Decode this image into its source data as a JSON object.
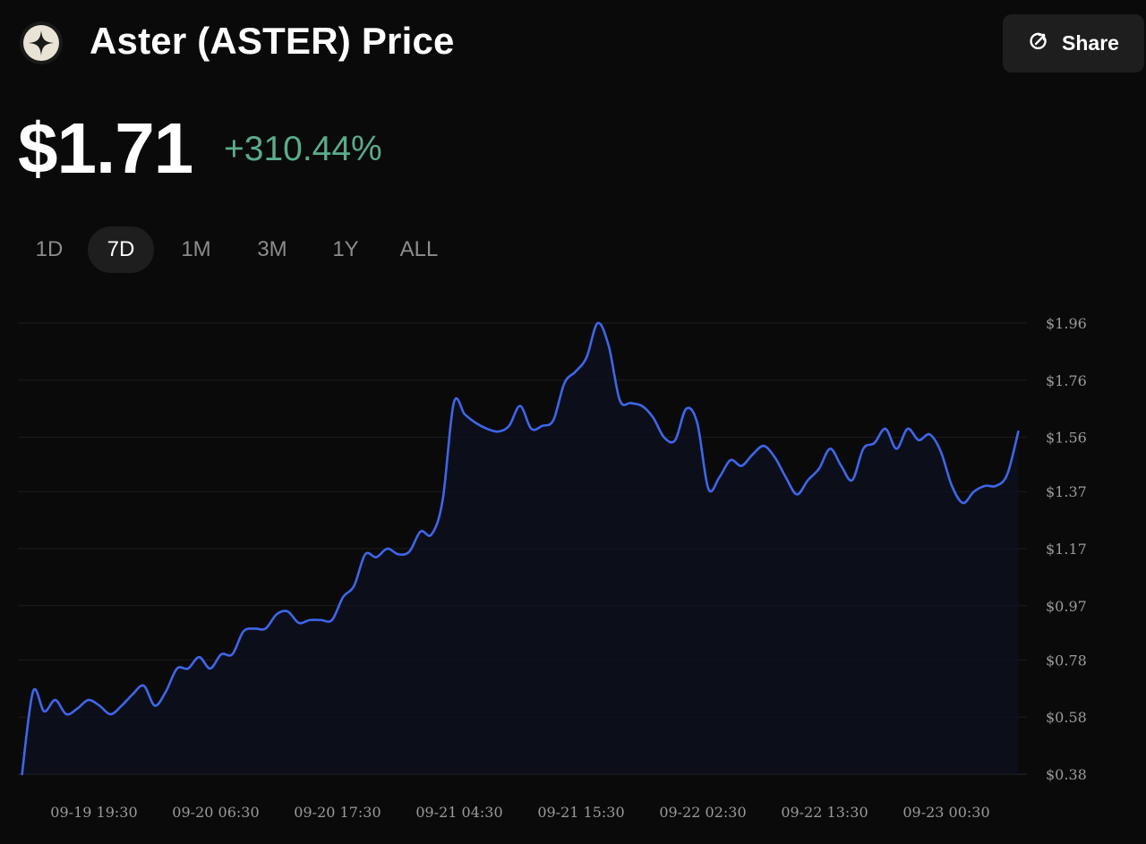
{
  "header": {
    "title": "Aster (ASTER) Price",
    "logo_icon": "aster-logo-icon",
    "share_label": "Share",
    "share_icon": "share-arrow-icon"
  },
  "price": {
    "value": "$1.71",
    "change": "+310.44%",
    "change_color": "#5aac8a"
  },
  "tabs": [
    {
      "label": "1D",
      "active": false
    },
    {
      "label": "7D",
      "active": true
    },
    {
      "label": "1M",
      "active": false
    },
    {
      "label": "3M",
      "active": false
    },
    {
      "label": "1Y",
      "active": false
    },
    {
      "label": "ALL",
      "active": false
    }
  ],
  "chart_data": {
    "type": "line",
    "line_color": "#3e66ea",
    "grid": true,
    "ylim": [
      0.38,
      1.96
    ],
    "y_ticks": [
      "$1.96",
      "$1.76",
      "$1.56",
      "$1.37",
      "$1.17",
      "$0.97",
      "$0.78",
      "$0.58",
      "$0.38"
    ],
    "y_tick_values": [
      1.96,
      1.76,
      1.56,
      1.37,
      1.17,
      0.97,
      0.78,
      0.58,
      0.38
    ],
    "x_ticks": [
      "09-19 19:30",
      "09-20 06:30",
      "09-20 17:30",
      "09-21 04:30",
      "09-21 15:30",
      "09-22 02:30",
      "09-22 13:30",
      "09-23 00:30"
    ],
    "x": [
      "09-19 13:00",
      "09-19 14:00",
      "09-19 15:00",
      "09-19 16:00",
      "09-19 17:00",
      "09-19 18:00",
      "09-19 19:00",
      "09-19 20:00",
      "09-19 21:00",
      "09-19 22:00",
      "09-19 23:00",
      "09-20 00:00",
      "09-20 01:00",
      "09-20 02:00",
      "09-20 03:00",
      "09-20 04:00",
      "09-20 05:00",
      "09-20 06:00",
      "09-20 07:00",
      "09-20 08:00",
      "09-20 09:00",
      "09-20 10:00",
      "09-20 11:00",
      "09-20 12:00",
      "09-20 13:00",
      "09-20 14:00",
      "09-20 15:00",
      "09-20 16:00",
      "09-20 17:00",
      "09-20 18:00",
      "09-20 19:00",
      "09-20 20:00",
      "09-20 21:00",
      "09-20 22:00",
      "09-20 23:00",
      "09-21 00:00",
      "09-21 01:00",
      "09-21 02:00",
      "09-21 03:00",
      "09-21 04:00",
      "09-21 05:00",
      "09-21 06:00",
      "09-21 07:00",
      "09-21 08:00",
      "09-21 09:00",
      "09-21 10:00",
      "09-21 11:00",
      "09-21 12:00",
      "09-21 13:00",
      "09-21 14:00",
      "09-21 15:00",
      "09-21 16:00",
      "09-21 17:00",
      "09-21 18:00",
      "09-21 19:00",
      "09-21 20:00",
      "09-21 21:00",
      "09-21 22:00",
      "09-21 23:00",
      "09-22 00:00",
      "09-22 01:00",
      "09-22 02:00",
      "09-22 03:00",
      "09-22 04:00",
      "09-22 05:00",
      "09-22 06:00",
      "09-22 07:00",
      "09-22 08:00",
      "09-22 09:00",
      "09-22 10:00",
      "09-22 11:00",
      "09-22 12:00",
      "09-22 13:00",
      "09-22 14:00",
      "09-22 15:00",
      "09-22 16:00",
      "09-22 17:00",
      "09-22 18:00",
      "09-22 19:00",
      "09-22 20:00",
      "09-22 21:00",
      "09-22 22:00",
      "09-22 23:00",
      "09-23 00:00",
      "09-23 01:00",
      "09-23 02:00",
      "09-23 03:00",
      "09-23 04:00",
      "09-23 05:00",
      "09-23 06:00",
      "09-23 07:00"
    ],
    "y": [
      0.38,
      0.67,
      0.6,
      0.64,
      0.59,
      0.61,
      0.64,
      0.62,
      0.59,
      0.62,
      0.66,
      0.69,
      0.62,
      0.67,
      0.75,
      0.75,
      0.79,
      0.75,
      0.8,
      0.8,
      0.88,
      0.89,
      0.89,
      0.94,
      0.95,
      0.91,
      0.92,
      0.92,
      0.92,
      1.0,
      1.04,
      1.15,
      1.14,
      1.17,
      1.15,
      1.16,
      1.23,
      1.22,
      1.34,
      1.68,
      1.64,
      1.61,
      1.59,
      1.58,
      1.6,
      1.67,
      1.59,
      1.6,
      1.62,
      1.75,
      1.79,
      1.84,
      1.96,
      1.88,
      1.69,
      1.68,
      1.67,
      1.63,
      1.56,
      1.55,
      1.66,
      1.61,
      1.38,
      1.42,
      1.48,
      1.46,
      1.5,
      1.53,
      1.49,
      1.42,
      1.36,
      1.41,
      1.45,
      1.52,
      1.46,
      1.41,
      1.52,
      1.54,
      1.59,
      1.52,
      1.59,
      1.55,
      1.57,
      1.51,
      1.39,
      1.33,
      1.37,
      1.39,
      1.39,
      1.43,
      1.58
    ]
  }
}
